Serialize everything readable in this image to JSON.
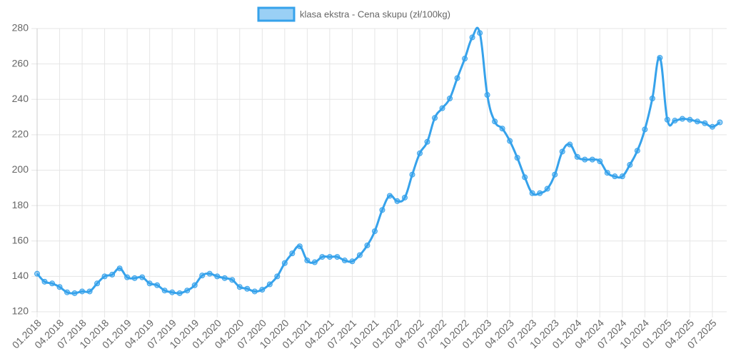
{
  "chart_data": {
    "type": "line",
    "categories": [
      "01.2018",
      null,
      null,
      "04.2018",
      null,
      null,
      "07.2018",
      null,
      null,
      "10.2018",
      null,
      null,
      "01.2019",
      null,
      null,
      "04.2019",
      null,
      null,
      "07.2019",
      null,
      null,
      "10.2019",
      null,
      null,
      "01.2020",
      null,
      null,
      "04.2020",
      null,
      null,
      "07.2020",
      null,
      null,
      "10.2020",
      null,
      null,
      "01.2021",
      null,
      null,
      "04.2021",
      null,
      null,
      "07.2021",
      null,
      null,
      "10.2021",
      null,
      null,
      "01.2022",
      null,
      null,
      "04.2022",
      null,
      null,
      "07.2022",
      null,
      null,
      "10.2022",
      null,
      null,
      "01.2023",
      null,
      null,
      "04.2023",
      null,
      null,
      "07.2023",
      null,
      null,
      "10.2023",
      null,
      null,
      "01.2024",
      null,
      null,
      "04.2024",
      null,
      null,
      "07.2024",
      null,
      null,
      "10.2024",
      null,
      null,
      "01.2025",
      null,
      null,
      "04.2025",
      null,
      null,
      "07.2025",
      null
    ],
    "series": [
      {
        "name": "klasa ekstra - Cena skupu (zł/100kg)",
        "color": "#36a2eb",
        "values": [
          141.5,
          137,
          136,
          134,
          131,
          130.5,
          131.5,
          131.5,
          136,
          140,
          141,
          144.5,
          139.5,
          139,
          139.5,
          136,
          135,
          132,
          131,
          130.5,
          132,
          135,
          140.5,
          141.5,
          140,
          139,
          138,
          134,
          133,
          131.5,
          132.5,
          135.5,
          140,
          147.5,
          153,
          157,
          149,
          148,
          151,
          151,
          151,
          149,
          148.5,
          152,
          157.5,
          165.5,
          177.5,
          185.5,
          182.5,
          184.5,
          197.5,
          209.5,
          216,
          229.5,
          235,
          240.5,
          252,
          263,
          275,
          277.5,
          242.5,
          227.5,
          223.5,
          216.5,
          207,
          196,
          187,
          187,
          189.5,
          197.5,
          210.5,
          214.5,
          207.5,
          206,
          206,
          205,
          198.5,
          196.5,
          196.5,
          203,
          211,
          223,
          240.5,
          263.5,
          228.5,
          228,
          229,
          228.5,
          227.5,
          226.5,
          224.5,
          227
        ]
      }
    ],
    "ylim": [
      120,
      280
    ],
    "yticks": [
      120,
      140,
      160,
      180,
      200,
      220,
      240,
      260,
      280
    ],
    "grid": true
  }
}
